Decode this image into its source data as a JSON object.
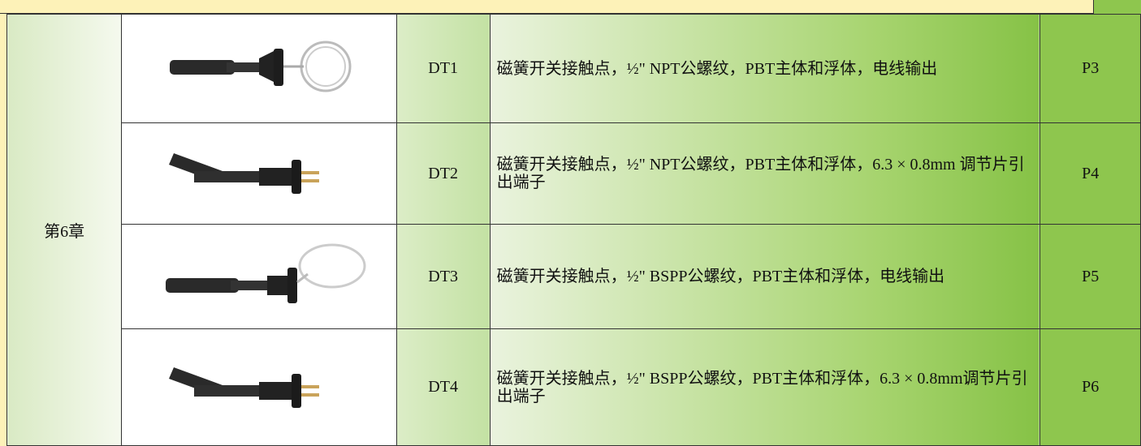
{
  "chapter": "第6章",
  "rows": [
    {
      "code": "DT1",
      "description": "磁簧开关接触点，½\" NPT公螺纹，PBT主体和浮体，电线输出",
      "page": "P3"
    },
    {
      "code": "DT2",
      "description": "磁簧开关接触点，½\" NPT公螺纹，PBT主体和浮体，6.3 × 0.8mm 调节片引出端子",
      "page": "P4"
    },
    {
      "code": "DT3",
      "description": "磁簧开关接触点，½\" BSPP公螺纹，PBT主体和浮体，电线输出",
      "page": "P5"
    },
    {
      "code": "DT4",
      "description": "磁簧开关接触点，½\" BSPP公螺纹，PBT主体和浮体，6.3 × 0.8mm调节片引出端子",
      "page": "P6"
    }
  ]
}
